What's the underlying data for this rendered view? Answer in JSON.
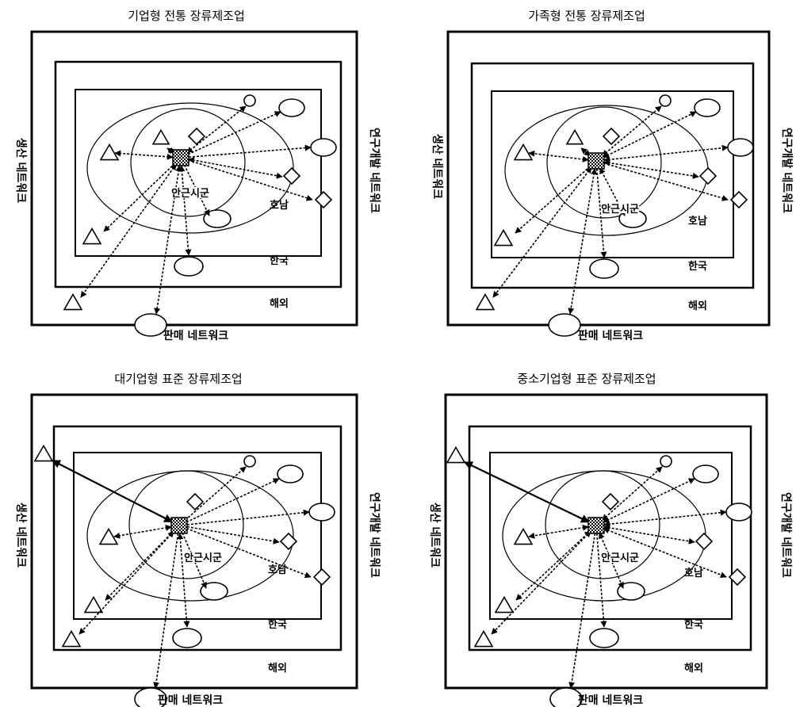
{
  "panels": [
    {
      "title": "기업형 전통 장류제조업",
      "left_label": "생산 네트워크",
      "right_label": "연구개발 네트워크",
      "bottom_label": "판매 네트워크",
      "zones": [
        "안근시군",
        "호남",
        "한국",
        "해외"
      ]
    },
    {
      "title": "가족형 전통 장류제조업",
      "left_label": "생산 네트워크",
      "right_label": "연구개발 네트워크",
      "bottom_label": "판매 네트워크",
      "zones": [
        "안근시군",
        "호남",
        "한국",
        "해외"
      ]
    },
    {
      "title": "대기업형 표준 장류제조업",
      "left_label": "생산 네트워크",
      "right_label": "연구개발 네트워크",
      "bottom_label": "판매 네트워크",
      "zones": [
        "안근시군",
        "호남",
        "한국",
        "해외"
      ]
    },
    {
      "title": "중소기업형 표준 장류제조업",
      "left_label": "생산 네트워크",
      "right_label": "연구개발 네트워크",
      "bottom_label": "판매 네트워크",
      "zones": [
        "안근시군",
        "호남",
        "한국",
        "해외"
      ]
    }
  ]
}
